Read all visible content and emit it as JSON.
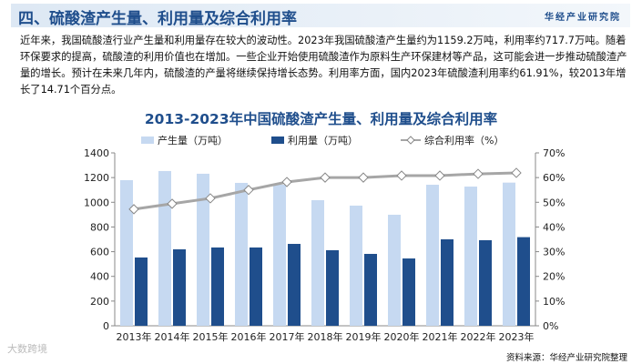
{
  "header": {
    "title": "四、硫酸渣产生量、利用量及综合利用率",
    "brand": "华经产业研究院"
  },
  "paragraph": "近年来，我国硫酸渣行业产生量和利用量存在较大的波动性。2023年我国硫酸渣产生量约为1159.2万吨，利用率约717.7万吨。随着环保要求的提高，硫酸渣的利用价值也在增加。一些企业开始使用硫酸渣作为原料生产环保建材等产品，这可能会进一步推动硫酸渣产量的增长。预计在未来几年内，硫酸渣的产量将继续保持增长态势。利用率方面，国内2023年硫酸渣利用率约61.91%，较2013年增长了14.71个百分点。",
  "source": "资料来源：华经产业研究院整理",
  "watermark": "大数跨境",
  "chart_data": {
    "type": "bar",
    "title": "2013-2023年中国硫酸渣产生量、利用量及综合利用率",
    "categories": [
      "2013年",
      "2014年",
      "2015年",
      "2016年",
      "2017年",
      "2018年",
      "2019年",
      "2020年",
      "2021年",
      "2022年",
      "2023年"
    ],
    "series": [
      {
        "name": "产生量（万吨）",
        "type": "bar",
        "axis": "left",
        "color": "#c6d9f1",
        "values": [
          1179,
          1253,
          1231,
          1157,
          1142,
          1017,
          973,
          899,
          1142,
          1127,
          1159.2
        ]
      },
      {
        "name": "利用量（万吨）",
        "type": "bar",
        "axis": "left",
        "color": "#1f4e8c",
        "values": [
          553,
          619,
          634,
          634,
          663,
          612,
          582,
          545,
          700,
          693,
          717.7
        ]
      },
      {
        "name": "综合利用率（%）",
        "type": "line",
        "axis": "right",
        "color": "#a6a6a6",
        "values": [
          47.2,
          49.4,
          51.6,
          55.0,
          58.2,
          60.0,
          60.0,
          60.8,
          60.8,
          61.5,
          61.91
        ]
      }
    ],
    "ylim": [
      0,
      1400
    ],
    "yticks": [
      0,
      200,
      400,
      600,
      800,
      1000,
      1200,
      1400
    ],
    "y2lim": [
      0,
      70
    ],
    "y2ticks": [
      "0%",
      "10%",
      "20%",
      "30%",
      "40%",
      "50%",
      "60%",
      "70%"
    ],
    "legend": "top"
  }
}
